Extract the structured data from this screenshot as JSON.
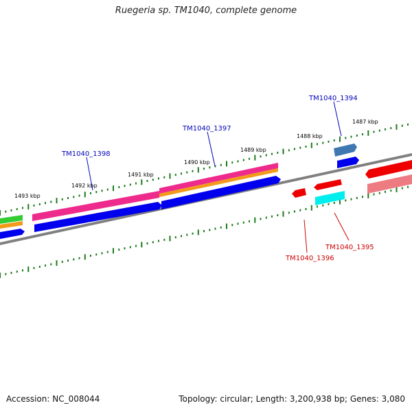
{
  "title": "Ruegeria sp. TM1040, complete genome",
  "footer": {
    "accession": "Accession: NC_008044",
    "summary": "Topology: circular; Length: 3,200,938 bp; Genes: 3,080"
  },
  "ticks": [
    "1493 kbp",
    "1492 kbp",
    "1491 kbp",
    "1490 kbp",
    "1489 kbp",
    "1488 kbp",
    "1487 kbp"
  ],
  "labels": {
    "TM1040_1398": "TM1040_1398",
    "TM1040_1397": "TM1040_1397",
    "TM1040_1394": "TM1040_1394",
    "TM1040_1395": "TM1040_1395",
    "TM1040_1396": "TM1040_1396"
  },
  "colors": {
    "backbone": "#808080",
    "ticks": "#1a7a1a",
    "blue": "#0000ee",
    "magenta": "#ee2a8c",
    "orange": "#f29a1a",
    "green": "#33cc33",
    "red": "#ee0000",
    "pink": "#ee7b82",
    "cyan": "#00eeee",
    "steelblue": "#3f77b0",
    "labelBlue": "#0000bb",
    "labelRed": "#cc0000"
  }
}
